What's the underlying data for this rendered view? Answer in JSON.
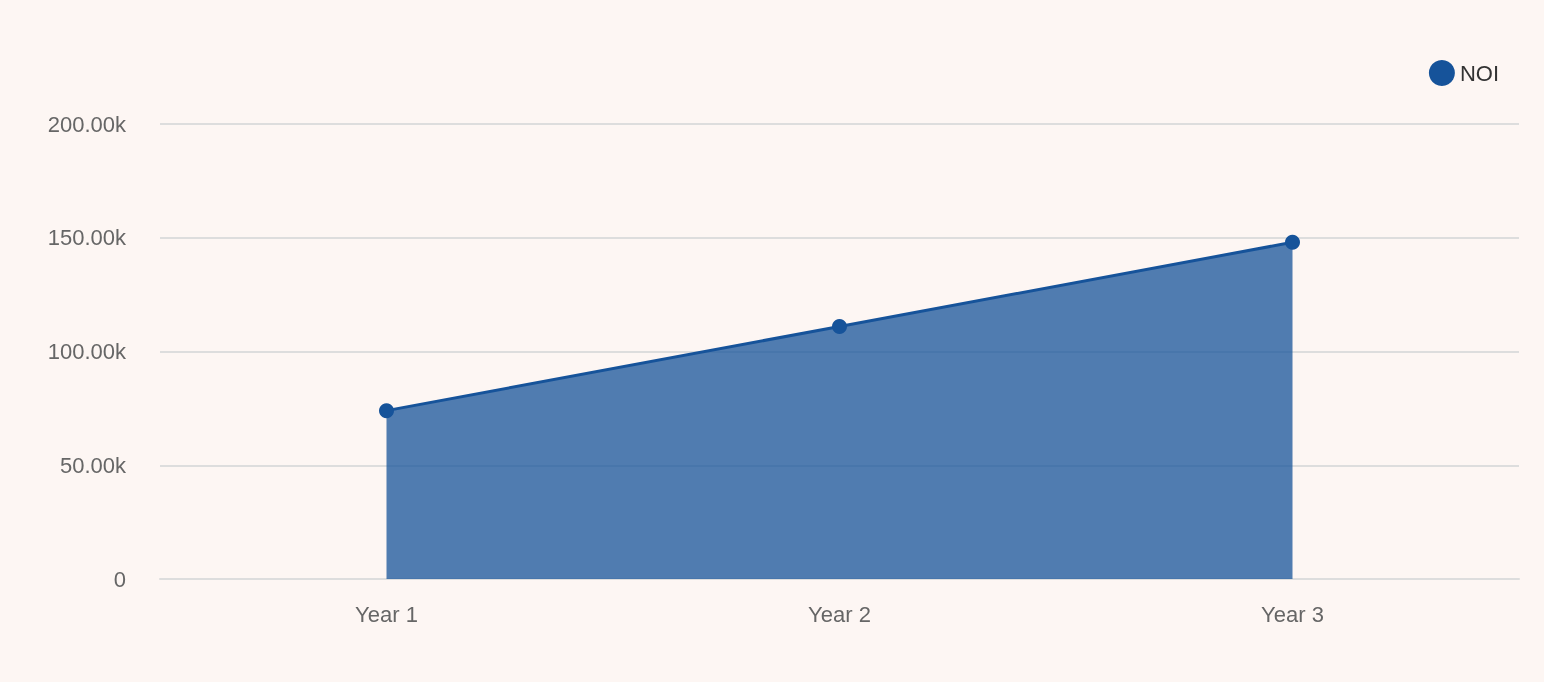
{
  "chart_data": {
    "type": "area",
    "categories": [
      "Year 1",
      "Year 2",
      "Year 3"
    ],
    "series": [
      {
        "name": "NOI",
        "color": "#16539a",
        "values": [
          74000,
          111000,
          148000
        ]
      }
    ],
    "ylim": [
      0,
      200000
    ],
    "yticks": [
      0,
      {
        "value": 50000,
        "label": "50.00k"
      },
      {
        "value": 100000,
        "label": "100.00k"
      },
      {
        "value": 150000,
        "label": "150.00k"
      },
      {
        "value": 200000,
        "label": "200.00k"
      }
    ],
    "grid": "y",
    "legend": "top right",
    "marker": "circle",
    "line_style": "solid"
  }
}
